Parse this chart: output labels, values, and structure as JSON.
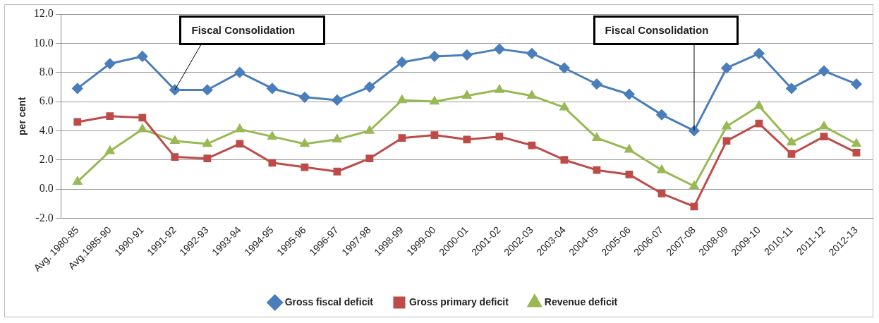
{
  "chart_data": {
    "type": "line",
    "ylabel": "per cent",
    "categories": [
      "Avg. 1980-85",
      "Avg.1985-90",
      "1990-91",
      "1991-92",
      "1992-93",
      "1993-94",
      "1994-95",
      "1995-96",
      "1996-97",
      "1997-98",
      "1998-99",
      "1999-00",
      "2000-01",
      "2001-02",
      "2002-03",
      "2003-04",
      "2004-05",
      "2005-06",
      "2006-07",
      "2007-08",
      "2008-09",
      "2009-10",
      "2010-11",
      "2011-12",
      "2012-13"
    ],
    "series": [
      {
        "name": "Gross fiscal deficit",
        "color": "#4a7ebb",
        "marker": "diamond",
        "values": [
          6.9,
          8.6,
          9.1,
          6.8,
          6.8,
          8.0,
          6.9,
          6.3,
          6.1,
          7.0,
          8.7,
          9.1,
          9.2,
          9.6,
          9.3,
          8.3,
          7.2,
          6.5,
          5.1,
          4.0,
          8.3,
          9.3,
          6.9,
          8.1,
          7.2
        ]
      },
      {
        "name": "Gross primary deficit",
        "color": "#be4b48",
        "marker": "square",
        "values": [
          4.6,
          5.0,
          4.9,
          2.2,
          2.1,
          3.1,
          1.8,
          1.5,
          1.2,
          2.1,
          3.5,
          3.7,
          3.4,
          3.6,
          3.0,
          2.0,
          1.3,
          1.0,
          -0.3,
          -1.2,
          3.3,
          4.5,
          2.4,
          3.6,
          2.5
        ]
      },
      {
        "name": "Revenue deficit",
        "color": "#98b954",
        "marker": "triangle",
        "values": [
          0.5,
          2.6,
          4.1,
          3.3,
          3.1,
          4.1,
          3.6,
          3.1,
          3.4,
          4.0,
          6.1,
          6.0,
          6.4,
          6.8,
          6.4,
          5.6,
          3.5,
          2.7,
          1.3,
          0.2,
          4.3,
          5.7,
          3.2,
          4.3,
          3.1
        ]
      }
    ],
    "ylim": [
      -2,
      12
    ],
    "yticks": [
      {
        "value": -2,
        "label": "-2.0"
      },
      {
        "value": 0,
        "label": "0.0"
      },
      {
        "value": 2,
        "label": "2.0"
      },
      {
        "value": 4,
        "label": "4.0"
      },
      {
        "value": 6,
        "label": "6.0"
      },
      {
        "value": 8,
        "label": "8.0"
      },
      {
        "value": 10,
        "label": "10.0"
      },
      {
        "value": 12,
        "label": "12.0"
      }
    ],
    "grid": "y",
    "legend": "bottom",
    "annotations": [
      {
        "text": "Fiscal Consolidation",
        "x": "1991-92",
        "y": 6.8
      },
      {
        "text": "Fiscal Consolidation",
        "x": "2007-08",
        "y": 4.0
      }
    ]
  }
}
